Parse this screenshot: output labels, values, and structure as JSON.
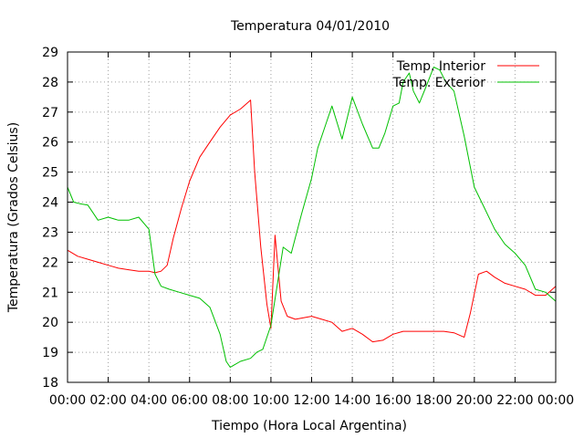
{
  "chart_data": {
    "type": "line",
    "title": "Temperatura 04/01/2010",
    "xlabel": "Tiempo (Hora Local Argentina)",
    "ylabel": "Temperatura (Grados Celsius)",
    "xlim": [
      0,
      24
    ],
    "ylim": [
      18,
      29
    ],
    "x_tick_values": [
      0,
      2,
      4,
      6,
      8,
      10,
      12,
      14,
      16,
      18,
      20,
      22,
      24
    ],
    "x_tick_labels": [
      "00:00",
      "02:00",
      "04:00",
      "06:00",
      "08:00",
      "10:00",
      "12:00",
      "14:00",
      "16:00",
      "18:00",
      "20:00",
      "22:00",
      "00:00"
    ],
    "y_ticks": [
      18,
      19,
      20,
      21,
      22,
      23,
      24,
      25,
      26,
      27,
      28,
      29
    ],
    "grid": true,
    "legend_position": "top-right",
    "series": [
      {
        "name": "Temp. Interior",
        "color": "#ff0000",
        "x": [
          0,
          0.5,
          1,
          1.5,
          2,
          2.5,
          3,
          3.5,
          4,
          4.3,
          4.6,
          4.9,
          5.2,
          5.6,
          6,
          6.5,
          7,
          7.5,
          8,
          8.5,
          9,
          9.2,
          9.5,
          9.8,
          10,
          10.2,
          10.5,
          10.8,
          11.2,
          11.6,
          12,
          12.5,
          13,
          13.5,
          14,
          14.5,
          15,
          15.5,
          16,
          16.5,
          17,
          17.5,
          18,
          18.5,
          19,
          19.5,
          19.8,
          20.2,
          20.6,
          21,
          21.5,
          22,
          22.5,
          23,
          23.5,
          24
        ],
        "y": [
          22.4,
          22.2,
          22.1,
          22.0,
          21.9,
          21.8,
          21.75,
          21.7,
          21.7,
          21.65,
          21.7,
          21.9,
          22.8,
          23.8,
          24.7,
          25.5,
          26.0,
          26.5,
          26.9,
          27.1,
          27.4,
          25.0,
          22.5,
          20.6,
          19.8,
          22.9,
          20.7,
          20.2,
          20.1,
          20.15,
          20.2,
          20.1,
          20.0,
          19.7,
          19.8,
          19.6,
          19.35,
          19.4,
          19.6,
          19.7,
          19.7,
          19.7,
          19.7,
          19.7,
          19.65,
          19.5,
          20.3,
          21.6,
          21.7,
          21.5,
          21.3,
          21.2,
          21.1,
          20.9,
          20.9,
          21.2
        ]
      },
      {
        "name": "Temp. Exterior",
        "color": "#00c000",
        "x": [
          0,
          0.3,
          0.6,
          1,
          1.5,
          2,
          2.5,
          3,
          3.5,
          4,
          4.3,
          4.6,
          5,
          5.5,
          6,
          6.5,
          7,
          7.5,
          7.8,
          8,
          8.5,
          9,
          9.3,
          9.6,
          10,
          10.3,
          10.6,
          11,
          11.5,
          12,
          12.3,
          12.7,
          13,
          13.5,
          14,
          14.5,
          15,
          15.3,
          15.6,
          16,
          16.3,
          16.5,
          16.8,
          17,
          17.3,
          17.6,
          18,
          18.3,
          18.6,
          19,
          19.5,
          20,
          20.5,
          21,
          21.5,
          22,
          22.5,
          23,
          23.5,
          24
        ],
        "y": [
          24.5,
          24.0,
          23.95,
          23.9,
          23.4,
          23.5,
          23.4,
          23.4,
          23.5,
          23.1,
          21.6,
          21.2,
          21.1,
          21.0,
          20.9,
          20.8,
          20.5,
          19.6,
          18.7,
          18.5,
          18.7,
          18.8,
          19.0,
          19.1,
          19.9,
          21.2,
          22.5,
          22.3,
          23.6,
          24.8,
          25.8,
          26.6,
          27.2,
          26.1,
          27.5,
          26.6,
          25.8,
          25.8,
          26.3,
          27.2,
          27.3,
          28.0,
          28.3,
          27.7,
          27.3,
          27.8,
          28.5,
          28.4,
          28.0,
          27.7,
          26.2,
          24.5,
          23.8,
          23.1,
          22.6,
          22.3,
          21.9,
          21.1,
          21.0,
          20.7
        ]
      }
    ]
  }
}
